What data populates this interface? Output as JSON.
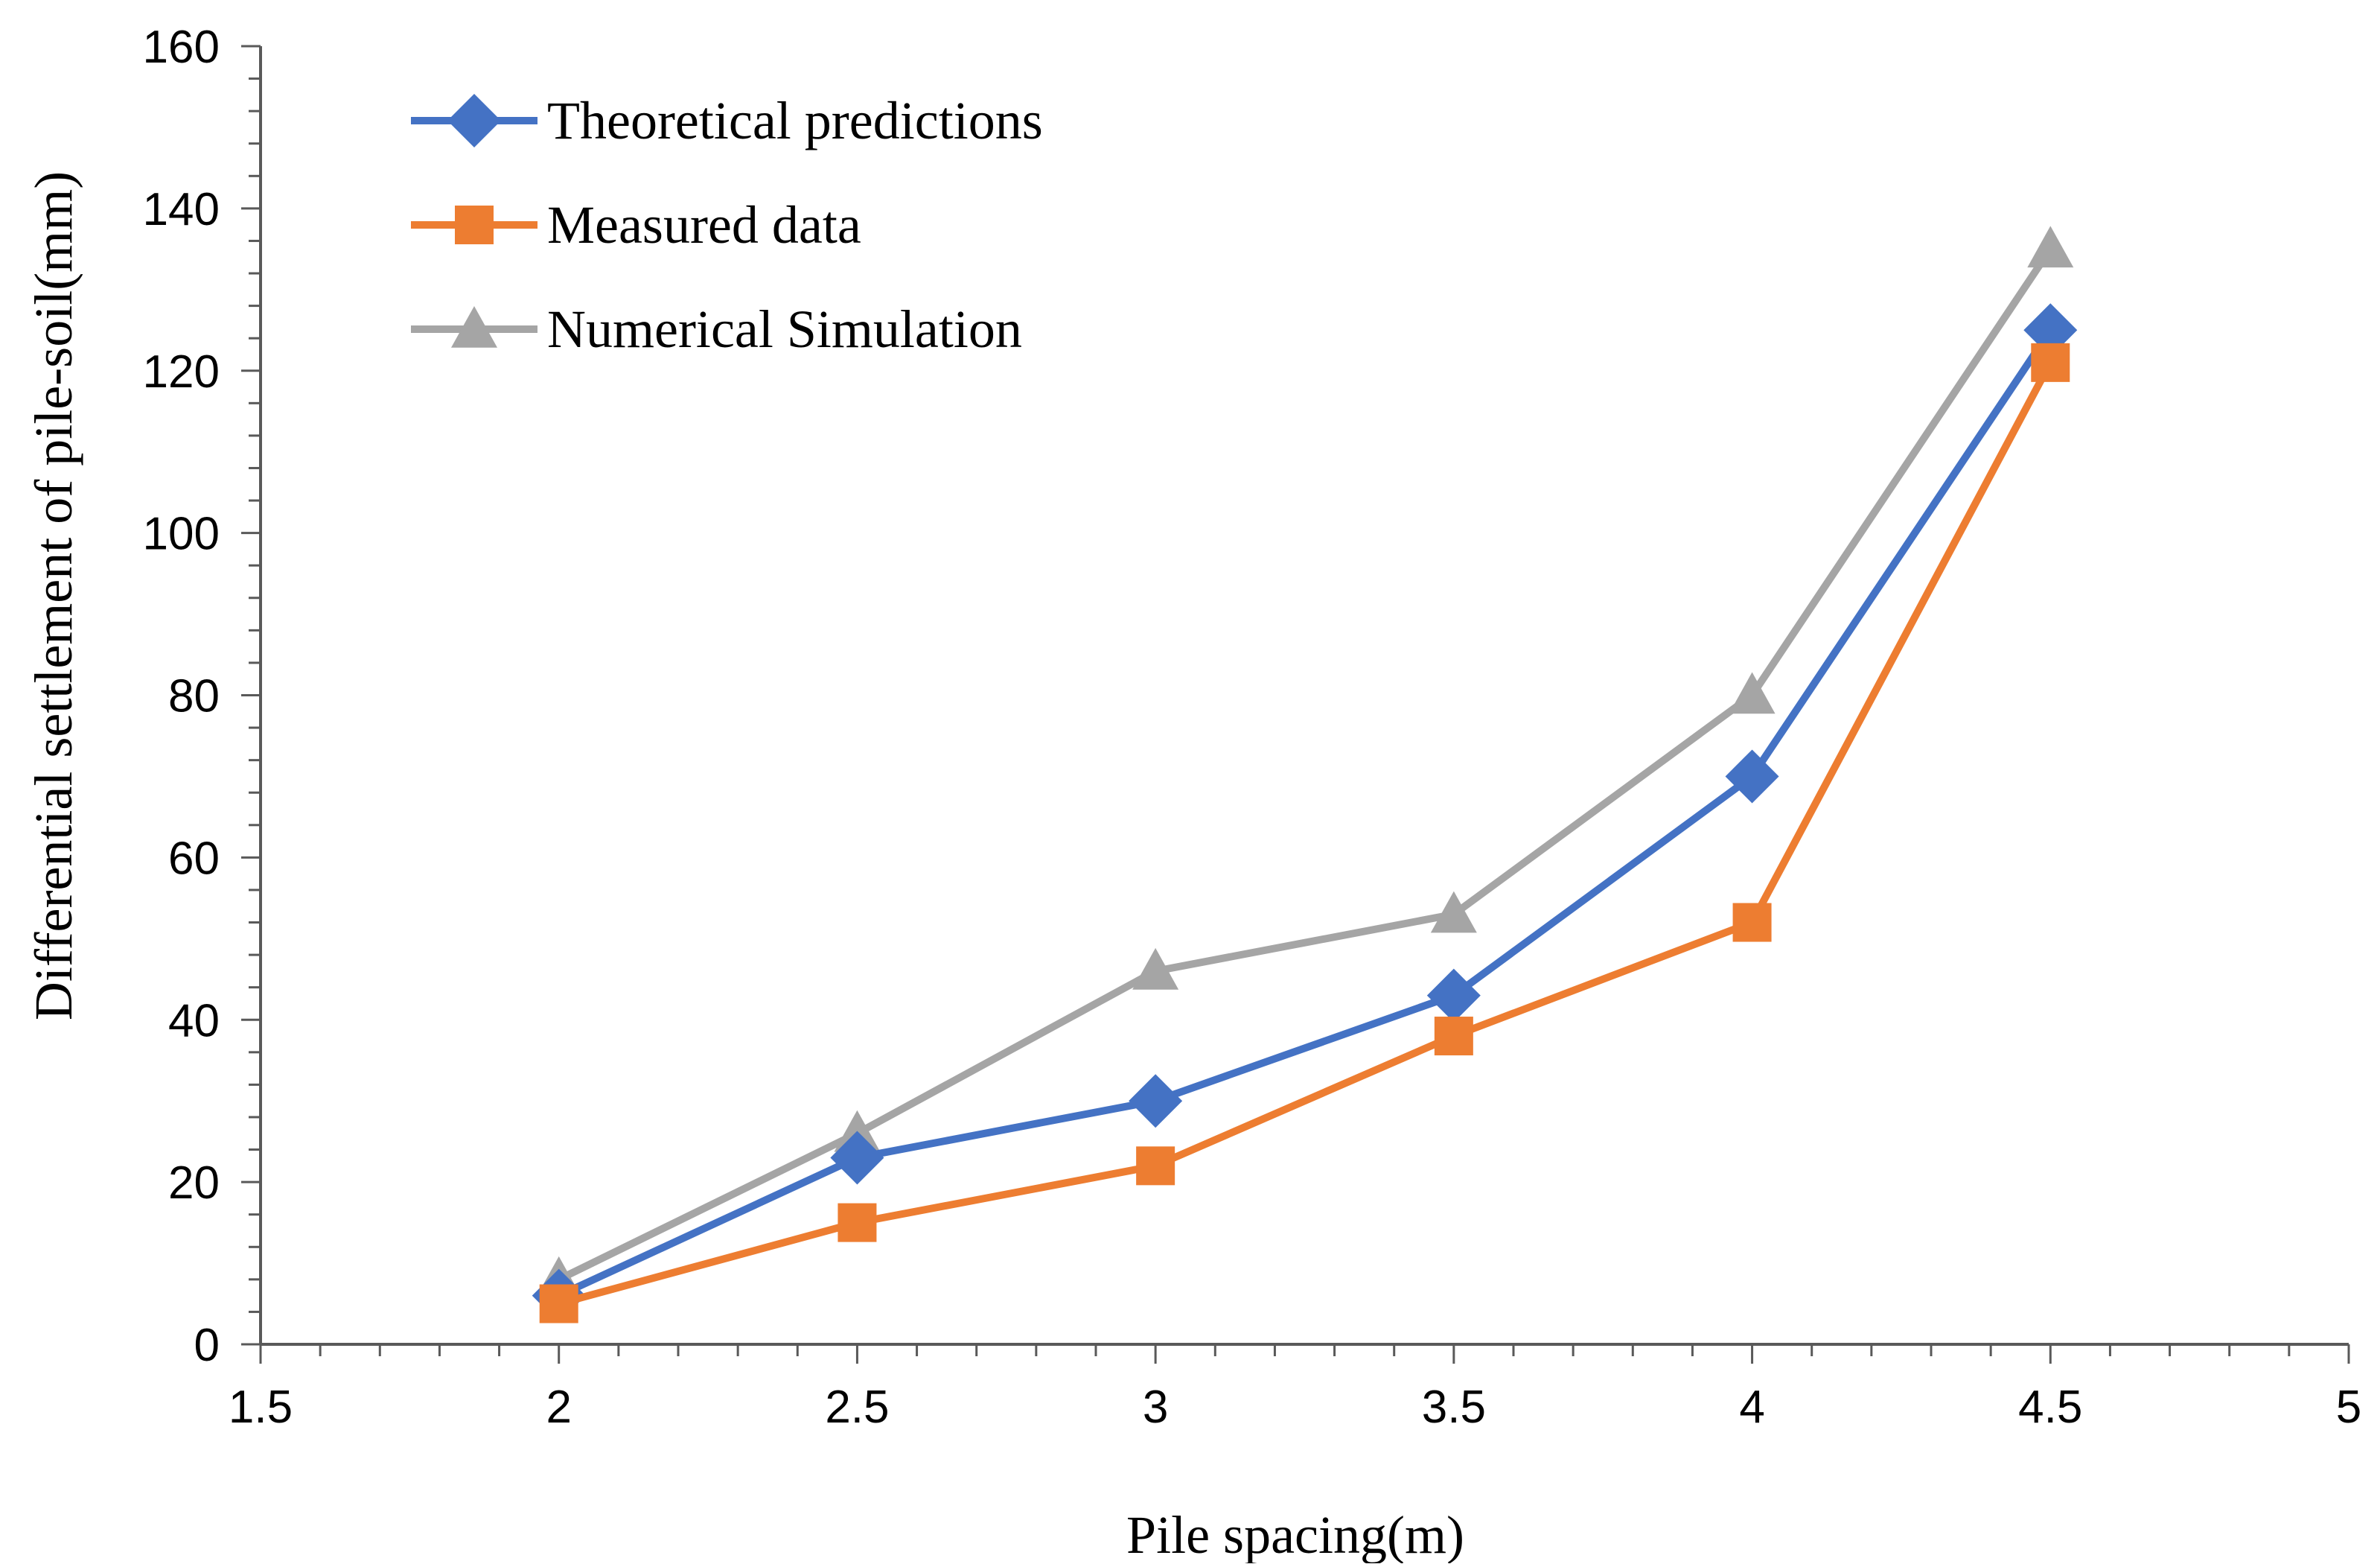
{
  "chart_data": {
    "type": "line",
    "title": "",
    "xlabel": "Pile spacing(m)",
    "ylabel": "Differential settlement of pile-soil(mm)",
    "xlim": [
      1.5,
      5
    ],
    "ylim": [
      0,
      160
    ],
    "x_major_step": 0.5,
    "x_minor_step": 0.1,
    "y_major_step": 20,
    "y_minor_step": 4,
    "x_tick_labels": [
      "1.5",
      "2",
      "2.5",
      "3",
      "3.5",
      "4",
      "4.5",
      "5"
    ],
    "y_tick_labels": [
      "0",
      "20",
      "40",
      "60",
      "80",
      "100",
      "120",
      "140",
      "160"
    ],
    "grid": false,
    "legend_position": "top-left",
    "x": [
      2,
      2.5,
      3,
      3.5,
      4,
      4.5
    ],
    "series": [
      {
        "name": "Theoretical predictions",
        "values": [
          6,
          23,
          30,
          43,
          70,
          125
        ],
        "color": "#4472C4",
        "marker": "diamond"
      },
      {
        "name": "Measured data",
        "values": [
          5,
          15,
          22,
          38,
          52,
          121
        ],
        "color": "#ED7D31",
        "marker": "square"
      },
      {
        "name": "Numerical Simulation",
        "values": [
          8,
          26,
          46,
          53,
          80,
          135
        ],
        "color": "#A5A5A5",
        "marker": "triangle"
      }
    ]
  }
}
